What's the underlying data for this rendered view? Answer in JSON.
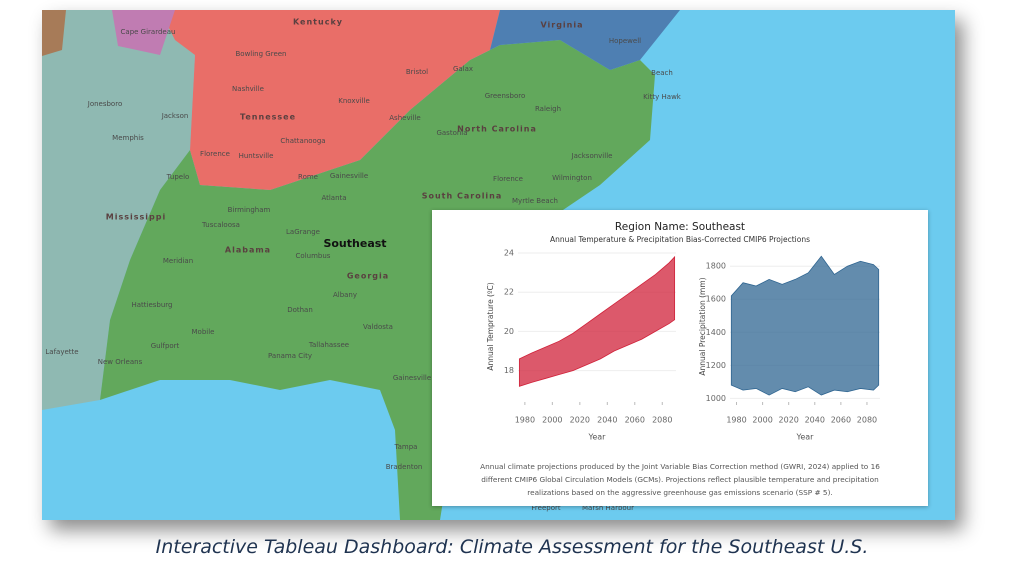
{
  "map": {
    "labels": [
      "Kentucky",
      "Virginia",
      "Cape Girardeau",
      "Bowling Green",
      "Nashville",
      "Tennessee",
      "Knoxville",
      "Bristol",
      "Galax",
      "Hopewell",
      "Beach",
      "Kitty Hawk",
      "Jonesboro",
      "Memphis",
      "Jackson",
      "Chattanooga",
      "Asheville",
      "Greensboro",
      "Raleigh",
      "North Carolina",
      "Gastonia",
      "Huntsville",
      "Florence",
      "Jacksonville",
      "Tupelo",
      "Rome",
      "Gainesville",
      "South Carolina",
      "Florence",
      "Wilmington",
      "Myrtle Beach",
      "Atlanta",
      "Birmingham",
      "Mississippi",
      "Tuscaloosa",
      "LaGrange",
      "Alabama",
      "Southeast",
      "Columbus",
      "Meridian",
      "Georgia",
      "Hattiesburg",
      "Albany",
      "Mobile",
      "Dothan",
      "Valdosta",
      "Tallahassee",
      "Gulfport",
      "Panama City",
      "New Orleans",
      "Lafayette",
      "Gainesville",
      "Tampa",
      "Bradenton",
      "Freeport",
      "Marsh Harbour"
    ]
  },
  "tooltip": {
    "title": "Region Name: Southeast",
    "subtitle": "Annual Temperature & Precipitation Bias-Corrected CMIP6 Projections",
    "note": [
      "Annual climate projections produced by the Joint Variable Bias Correction method (GWRI, 2024) applied to 16",
      "different CMIP6 Global Circulation Models (GCMs). Projections reflect plausible temperature and precipitation",
      "realizations based on the aggressive greenhouse gas emissions scenario (SSP # 5)."
    ]
  },
  "chart_data": [
    {
      "type": "band",
      "y_label": "Annual Temprature (ºC)",
      "x_label": "Year",
      "color": "#d0223a",
      "x": [
        1976,
        1985,
        1995,
        2005,
        2015,
        2025,
        2035,
        2045,
        2055,
        2065,
        2075,
        2085,
        2089
      ],
      "low": [
        17.2,
        17.4,
        17.6,
        17.8,
        18.0,
        18.3,
        18.6,
        19.0,
        19.3,
        19.6,
        20.0,
        20.4,
        20.6
      ],
      "high": [
        18.6,
        18.9,
        19.2,
        19.5,
        19.9,
        20.4,
        20.9,
        21.4,
        21.9,
        22.4,
        22.9,
        23.5,
        23.8
      ],
      "xlim": [
        1975,
        2090
      ],
      "xticks": [
        1980,
        2000,
        2020,
        2040,
        2060,
        2080
      ],
      "ylim": [
        16.5,
        24
      ],
      "yticks": [
        18,
        20,
        22,
        24
      ],
      "grid": true
    },
    {
      "type": "band",
      "y_label": "Annual Precipitation (mm)",
      "x_label": "Year",
      "color": "#2f6591",
      "x": [
        1976,
        1985,
        1995,
        2005,
        2015,
        2025,
        2035,
        2045,
        2055,
        2065,
        2075,
        2085,
        2089
      ],
      "low": [
        1080,
        1050,
        1060,
        1020,
        1060,
        1040,
        1070,
        1020,
        1050,
        1040,
        1060,
        1050,
        1080
      ],
      "high": [
        1620,
        1700,
        1680,
        1720,
        1690,
        1720,
        1760,
        1860,
        1750,
        1800,
        1830,
        1810,
        1780
      ],
      "xlim": [
        1975,
        2090
      ],
      "xticks": [
        1980,
        2000,
        2020,
        2040,
        2060,
        2080
      ],
      "ylim": [
        990,
        1880
      ],
      "yticks": [
        1000,
        1200,
        1400,
        1600,
        1800
      ],
      "grid": true
    }
  ],
  "caption": "Interactive Tableau Dashboard: Climate Assessment for the Southeast U.S."
}
